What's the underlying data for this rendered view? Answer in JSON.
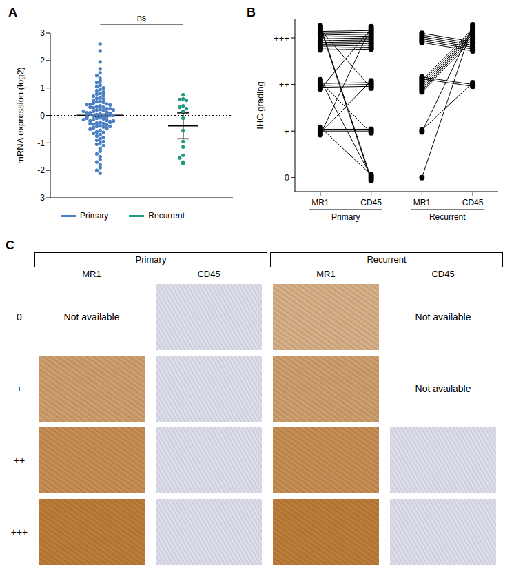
{
  "chart_data": [
    {
      "type": "scatter",
      "title": "A",
      "y_label": "mRNA expression (log2)",
      "ylim": [
        -3,
        3
      ],
      "yticks": [
        3,
        2,
        1,
        0,
        -1,
        -2,
        -3
      ],
      "tick_labels": "y",
      "reference_line": 0,
      "annotation": "ns",
      "legend": "bottom",
      "series": [
        {
          "name": "Primary",
          "color": "#4b7fc4",
          "mean": 0.0,
          "error": 0.05,
          "values": [
            2.6,
            2.35,
            1.95,
            1.7,
            1.55,
            1.45,
            1.35,
            1.25,
            1.2,
            1.1,
            1.05,
            1.0,
            0.95,
            0.9,
            0.85,
            0.8,
            0.78,
            0.72,
            0.7,
            0.65,
            0.62,
            0.6,
            0.55,
            0.52,
            0.5,
            0.48,
            0.45,
            0.42,
            0.4,
            0.38,
            0.35,
            0.32,
            0.3,
            0.28,
            0.25,
            0.22,
            0.2,
            0.18,
            0.15,
            0.12,
            0.1,
            0.08,
            0.05,
            0.03,
            0.0,
            -0.02,
            -0.05,
            -0.08,
            -0.1,
            -0.12,
            -0.15,
            -0.18,
            -0.2,
            -0.22,
            -0.25,
            -0.28,
            -0.3,
            -0.32,
            -0.35,
            -0.38,
            -0.4,
            -0.42,
            -0.45,
            -0.48,
            -0.5,
            -0.55,
            -0.6,
            -0.62,
            -0.65,
            -0.7,
            -0.75,
            -0.8,
            -0.85,
            -0.9,
            -0.95,
            -1.0,
            -1.05,
            -1.1,
            -1.2,
            -1.3,
            -1.4,
            -1.5,
            -1.6,
            -1.7,
            -1.8,
            -1.9,
            -2.0,
            -2.1,
            0.1,
            0.05,
            0.0,
            -0.05,
            -0.1,
            0.2,
            -0.2,
            0.3,
            -0.3,
            0.15,
            -0.15,
            0.4,
            -0.4,
            0.0,
            0.25,
            -0.25
          ]
        },
        {
          "name": "Recurrent",
          "color": "#1f9a82",
          "mean": -0.38,
          "error": 0.47,
          "values": [
            0.75,
            0.6,
            0.58,
            0.55,
            0.35,
            0.3,
            0.25,
            0.15,
            -0.1,
            -0.55,
            -0.95,
            -1.15,
            -1.45,
            -1.55,
            -1.7,
            -1.75
          ]
        }
      ]
    },
    {
      "type": "line",
      "title": "B",
      "y_label": "IHC grading",
      "categories": [
        "MR1",
        "CD45",
        "MR1",
        "CD45"
      ],
      "ylim": [
        -0.3,
        3.4
      ],
      "yticks": [
        0,
        {
          "value": 1,
          "label": "+"
        },
        {
          "value": 2,
          "label": "++"
        },
        {
          "value": 3,
          "label": "+++"
        }
      ],
      "marker": "circle",
      "color": "#000000",
      "groups": [
        {
          "name": "Primary",
          "pairs": [
            [
              3,
              3
            ],
            [
              3,
              3
            ],
            [
              3,
              3
            ],
            [
              3,
              3
            ],
            [
              3,
              3
            ],
            [
              3,
              3
            ],
            [
              3,
              3
            ],
            [
              3,
              3
            ],
            [
              3,
              3
            ],
            [
              3,
              3
            ],
            [
              3,
              3
            ],
            [
              3,
              2
            ],
            [
              3,
              0
            ],
            [
              3,
              0
            ],
            [
              2,
              3
            ],
            [
              2,
              2
            ],
            [
              2,
              2
            ],
            [
              2,
              2
            ],
            [
              2,
              1
            ],
            [
              2,
              0
            ],
            [
              1,
              3
            ],
            [
              1,
              2
            ],
            [
              1,
              1
            ],
            [
              1,
              1
            ],
            [
              1,
              0
            ]
          ]
        },
        {
          "name": "Recurrent",
          "pairs": [
            [
              3,
              3
            ],
            [
              3,
              3
            ],
            [
              3,
              3
            ],
            [
              3,
              3
            ],
            [
              3,
              3
            ],
            [
              3,
              3
            ],
            [
              2,
              3
            ],
            [
              2,
              3
            ],
            [
              2,
              3
            ],
            [
              2,
              3
            ],
            [
              2,
              3
            ],
            [
              2,
              3
            ],
            [
              2,
              3
            ],
            [
              2,
              2
            ],
            [
              2,
              2
            ],
            [
              1,
              3
            ],
            [
              1,
              2
            ],
            [
              0,
              3
            ]
          ]
        }
      ]
    }
  ],
  "panel_c": {
    "title": "C",
    "groups": [
      "Primary",
      "Recurrent"
    ],
    "columns": [
      "MR1",
      "CD45",
      "MR1",
      "CD45"
    ],
    "rows": [
      {
        "label": "0",
        "cells": [
          "Not available",
          null,
          null,
          "Not available"
        ]
      },
      {
        "label": "+",
        "cells": [
          null,
          null,
          null,
          "Not available"
        ]
      },
      {
        "label": "++",
        "cells": [
          null,
          null,
          null,
          null
        ]
      },
      {
        "label": "+++",
        "cells": [
          null,
          null,
          null,
          null
        ]
      }
    ]
  }
}
